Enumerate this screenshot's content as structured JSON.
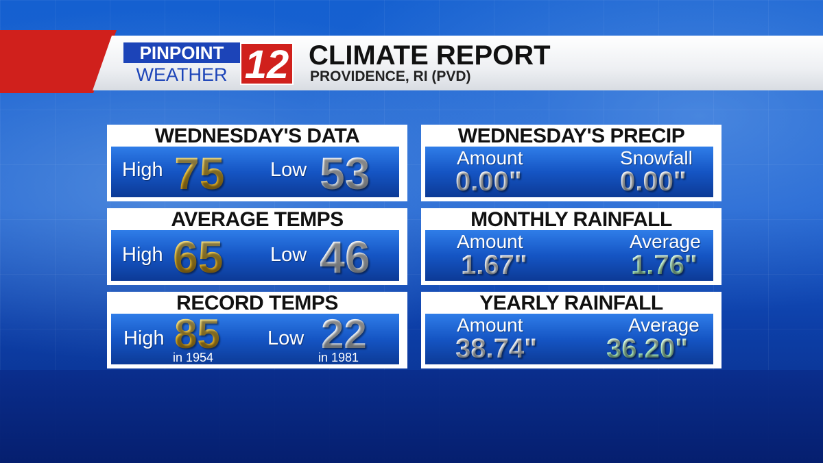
{
  "header": {
    "logo_top": "PINPOINT",
    "logo_bottom": "WEATHER",
    "logo_number": "12",
    "title": "CLIMATE REPORT",
    "subtitle": "PROVIDENCE, RI (PVD)"
  },
  "colors": {
    "brand_red": "#d0201c",
    "brand_blue": "#1c44b8",
    "panel_blue": "#1555c4",
    "gold_value": "#e3b52a",
    "mint_value": "#b9f0c8"
  },
  "panels": {
    "wednesday_data": {
      "title": "WEDNESDAY'S DATA",
      "high_label": "High",
      "high_value": "75",
      "low_label": "Low",
      "low_value": "53"
    },
    "average_temps": {
      "title": "AVERAGE TEMPS",
      "high_label": "High",
      "high_value": "65",
      "low_label": "Low",
      "low_value": "46"
    },
    "record_temps": {
      "title": "RECORD TEMPS",
      "high_label": "High",
      "high_value": "85",
      "high_year": "in 1954",
      "low_label": "Low",
      "low_value": "22",
      "low_year": "in 1981"
    },
    "wednesday_precip": {
      "title": "WEDNESDAY'S PRECIP",
      "left_label": "Amount",
      "left_value": "0.00\"",
      "right_label": "Snowfall",
      "right_value": "0.00\""
    },
    "monthly_rainfall": {
      "title": "MONTHLY RAINFALL",
      "left_label": "Amount",
      "left_value": "1.67\"",
      "right_label": "Average",
      "right_value": "1.76\""
    },
    "yearly_rainfall": {
      "title": "YEARLY RAINFALL",
      "left_label": "Amount",
      "left_value": "38.74\"",
      "right_label": "Average",
      "right_value": "36.20\""
    }
  }
}
